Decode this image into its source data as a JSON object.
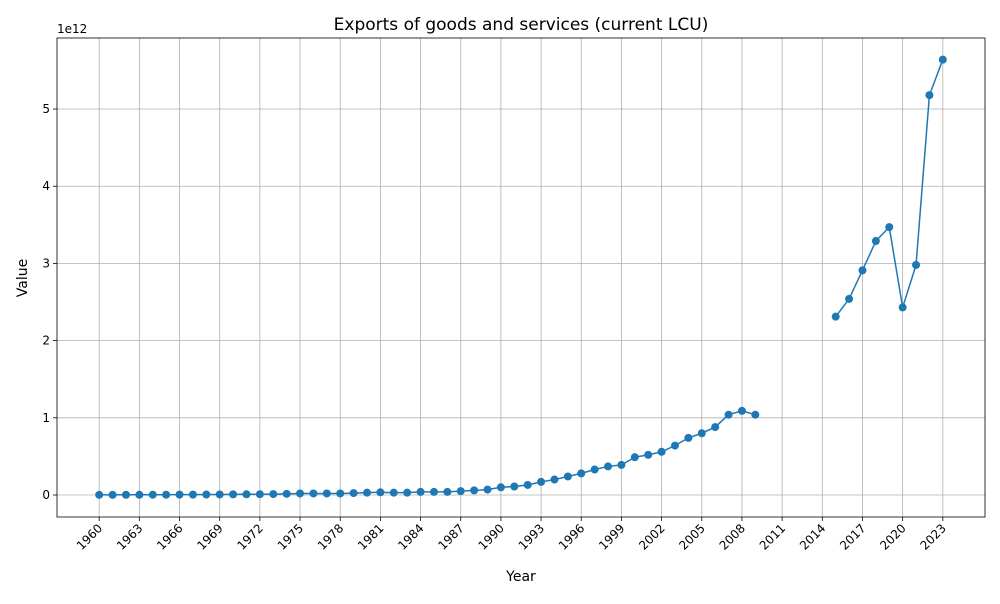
{
  "chart_data": {
    "type": "line",
    "title": "Exports of goods and services (current LCU)",
    "x_label": "Year",
    "y_label": "Value",
    "offset_label": "1e12",
    "x": [
      1960,
      1961,
      1962,
      1963,
      1964,
      1965,
      1966,
      1967,
      1968,
      1969,
      1970,
      1971,
      1972,
      1973,
      1974,
      1975,
      1976,
      1977,
      1978,
      1979,
      1980,
      1981,
      1982,
      1983,
      1984,
      1985,
      1986,
      1987,
      1988,
      1989,
      1990,
      1991,
      1992,
      1993,
      1994,
      1995,
      1996,
      1997,
      1998,
      1999,
      2000,
      2001,
      2002,
      2003,
      2004,
      2005,
      2006,
      2007,
      2008,
      2009,
      2010,
      2011,
      2012,
      2013,
      2014,
      2015,
      2016,
      2017,
      2018,
      2019,
      2020,
      2021,
      2022,
      2023
    ],
    "series": [
      {
        "name": "Exports",
        "color": "#1f77b4",
        "values": [
          0.002,
          0.002,
          0.003,
          0.003,
          0.004,
          0.004,
          0.005,
          0.005,
          0.006,
          0.007,
          0.008,
          0.009,
          0.01,
          0.012,
          0.015,
          0.02,
          0.02,
          0.02,
          0.02,
          0.025,
          0.03,
          0.035,
          0.03,
          0.03,
          0.04,
          0.04,
          0.04,
          0.05,
          0.06,
          0.07,
          0.1,
          0.11,
          0.13,
          0.17,
          0.2,
          0.24,
          0.28,
          0.33,
          0.37,
          0.39,
          0.49,
          0.52,
          0.56,
          0.64,
          0.74,
          0.8,
          0.88,
          1.04,
          1.09,
          1.04,
          null,
          null,
          null,
          null,
          null,
          2.31,
          2.54,
          2.91,
          3.29,
          3.47,
          2.43,
          2.98,
          5.18,
          5.64
        ]
      }
    ],
    "xlim": [
      1956.85,
      2026.15
    ],
    "ylim": [
      -0.285,
      5.92
    ],
    "xticks": [
      1960,
      1963,
      1966,
      1969,
      1972,
      1975,
      1978,
      1981,
      1984,
      1987,
      1990,
      1993,
      1996,
      1999,
      2002,
      2005,
      2008,
      2011,
      2014,
      2017,
      2020,
      2023
    ],
    "yticks": [
      0,
      1,
      2,
      3,
      4,
      5
    ],
    "grid": true
  }
}
